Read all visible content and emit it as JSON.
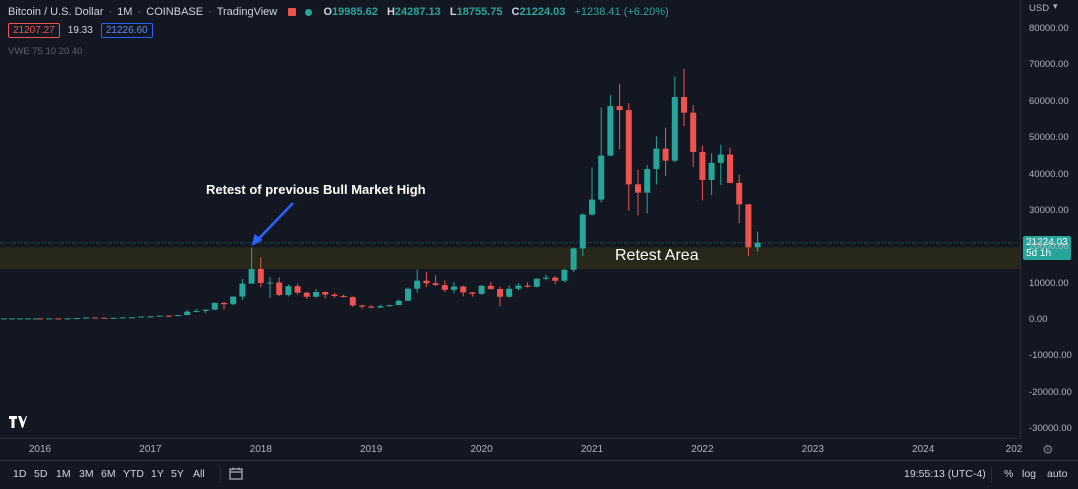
{
  "header": {
    "symbol": "Bitcoin / U.S. Dollar",
    "interval": "1M",
    "exchange": "COINBASE",
    "source": "TradingView",
    "open_label": "O",
    "open": "19985.62",
    "high_label": "H",
    "high": "24287.13",
    "low_label": "L",
    "low": "18755.75",
    "close_label": "C",
    "close": "21224.03",
    "change": "+1238.41 (+6.20%)",
    "sell_price": "21207.27",
    "spread": "19.33",
    "buy_price": "21226.60",
    "indicator": "VWE 75 10 20 40"
  },
  "currency": "USD",
  "y_axis_labels": [
    "80000.00",
    "70000.00",
    "60000.00",
    "50000.00",
    "40000.00",
    "30000.00",
    "20000.00",
    "10000.00",
    "0.00",
    "-10000.00",
    "-20000.00",
    "-30000.00"
  ],
  "last_price_tag": {
    "price": "21224.03",
    "countdown": "5d 1h"
  },
  "x_axis_labels": [
    "2016",
    "2017",
    "2018",
    "2019",
    "2020",
    "2021",
    "2022",
    "2023",
    "2024",
    "202"
  ],
  "annotations": {
    "retest_high": "Retest of previous Bull Market High",
    "retest_area": "Retest Area"
  },
  "bottom_bar": {
    "ranges": [
      "1D",
      "5D",
      "1M",
      "3M",
      "6M",
      "YTD",
      "1Y",
      "5Y",
      "All"
    ],
    "time": "19:55:13 (UTC-4)",
    "percent": "%",
    "log": "log",
    "auto": "auto"
  },
  "colors": {
    "up": "#26a69a",
    "down": "#ef5350",
    "background": "#131722",
    "zone": "#2b2a1a",
    "arrow": "#2962ff"
  },
  "chart_data": {
    "type": "candlestick",
    "title": "Bitcoin / U.S. Dollar · 1M · COINBASE",
    "xlabel": "",
    "ylabel": "USD",
    "ylim": [
      -30000,
      85000
    ],
    "grid": false,
    "zone": {
      "label": "Retest Area",
      "from": 14000,
      "to": 20000
    },
    "candles": [
      {
        "t": "2016-01",
        "o": 430,
        "h": 460,
        "l": 360,
        "c": 370
      },
      {
        "t": "2016-02",
        "o": 370,
        "h": 440,
        "l": 360,
        "c": 437
      },
      {
        "t": "2016-03",
        "o": 437,
        "h": 440,
        "l": 400,
        "c": 416
      },
      {
        "t": "2016-04",
        "o": 416,
        "h": 470,
        "l": 410,
        "c": 448
      },
      {
        "t": "2016-05",
        "o": 448,
        "h": 550,
        "l": 440,
        "c": 531
      },
      {
        "t": "2016-06",
        "o": 531,
        "h": 780,
        "l": 520,
        "c": 673
      },
      {
        "t": "2016-07",
        "o": 673,
        "h": 680,
        "l": 580,
        "c": 624
      },
      {
        "t": "2016-08",
        "o": 624,
        "h": 630,
        "l": 540,
        "c": 573
      },
      {
        "t": "2016-09",
        "o": 573,
        "h": 620,
        "l": 570,
        "c": 608
      },
      {
        "t": "2016-10",
        "o": 608,
        "h": 740,
        "l": 605,
        "c": 700
      },
      {
        "t": "2016-11",
        "o": 700,
        "h": 750,
        "l": 690,
        "c": 742
      },
      {
        "t": "2016-12",
        "o": 742,
        "h": 980,
        "l": 740,
        "c": 966
      },
      {
        "t": "2017-01",
        "o": 966,
        "h": 1150,
        "l": 750,
        "c": 970
      },
      {
        "t": "2017-02",
        "o": 970,
        "h": 1200,
        "l": 920,
        "c": 1190
      },
      {
        "t": "2017-03",
        "o": 1190,
        "h": 1300,
        "l": 900,
        "c": 1080
      },
      {
        "t": "2017-04",
        "o": 1080,
        "h": 1350,
        "l": 1070,
        "c": 1350
      },
      {
        "t": "2017-05",
        "o": 1350,
        "h": 2800,
        "l": 1340,
        "c": 2300
      },
      {
        "t": "2017-06",
        "o": 2300,
        "h": 3000,
        "l": 2100,
        "c": 2500
      },
      {
        "t": "2017-07",
        "o": 2500,
        "h": 2900,
        "l": 1800,
        "c": 2860
      },
      {
        "t": "2017-08",
        "o": 2860,
        "h": 4800,
        "l": 2700,
        "c": 4700
      },
      {
        "t": "2017-09",
        "o": 4700,
        "h": 5000,
        "l": 2900,
        "c": 4340
      },
      {
        "t": "2017-10",
        "o": 4340,
        "h": 6450,
        "l": 4100,
        "c": 6450
      },
      {
        "t": "2017-11",
        "o": 6450,
        "h": 11300,
        "l": 5500,
        "c": 10000
      },
      {
        "t": "2017-12",
        "o": 10000,
        "h": 19900,
        "l": 10000,
        "c": 14000
      },
      {
        "t": "2018-01",
        "o": 14000,
        "h": 17200,
        "l": 9000,
        "c": 10200
      },
      {
        "t": "2018-02",
        "o": 10200,
        "h": 11800,
        "l": 6000,
        "c": 10300
      },
      {
        "t": "2018-03",
        "o": 10300,
        "h": 11700,
        "l": 6600,
        "c": 6900
      },
      {
        "t": "2018-04",
        "o": 6900,
        "h": 9800,
        "l": 6500,
        "c": 9300
      },
      {
        "t": "2018-05",
        "o": 9300,
        "h": 10000,
        "l": 7000,
        "c": 7500
      },
      {
        "t": "2018-06",
        "o": 7500,
        "h": 7800,
        "l": 5800,
        "c": 6400
      },
      {
        "t": "2018-07",
        "o": 6400,
        "h": 8500,
        "l": 6100,
        "c": 7700
      },
      {
        "t": "2018-08",
        "o": 7700,
        "h": 7800,
        "l": 5900,
        "c": 7000
      },
      {
        "t": "2018-09",
        "o": 7000,
        "h": 7400,
        "l": 6100,
        "c": 6600
      },
      {
        "t": "2018-10",
        "o": 6600,
        "h": 7000,
        "l": 6200,
        "c": 6300
      },
      {
        "t": "2018-11",
        "o": 6300,
        "h": 6500,
        "l": 3600,
        "c": 4000
      },
      {
        "t": "2018-12",
        "o": 4000,
        "h": 4200,
        "l": 3100,
        "c": 3700
      },
      {
        "t": "2019-01",
        "o": 3700,
        "h": 4100,
        "l": 3350,
        "c": 3400
      },
      {
        "t": "2019-02",
        "o": 3400,
        "h": 4200,
        "l": 3350,
        "c": 3800
      },
      {
        "t": "2019-03",
        "o": 3800,
        "h": 4100,
        "l": 3700,
        "c": 4100
      },
      {
        "t": "2019-04",
        "o": 4100,
        "h": 5600,
        "l": 4050,
        "c": 5300
      },
      {
        "t": "2019-05",
        "o": 5300,
        "h": 9000,
        "l": 5200,
        "c": 8600
      },
      {
        "t": "2019-06",
        "o": 8600,
        "h": 13900,
        "l": 7500,
        "c": 10800
      },
      {
        "t": "2019-07",
        "o": 10800,
        "h": 13200,
        "l": 9100,
        "c": 10100
      },
      {
        "t": "2019-08",
        "o": 10100,
        "h": 12300,
        "l": 9400,
        "c": 9600
      },
      {
        "t": "2019-09",
        "o": 9600,
        "h": 10900,
        "l": 7700,
        "c": 8300
      },
      {
        "t": "2019-10",
        "o": 8300,
        "h": 10400,
        "l": 7300,
        "c": 9200
      },
      {
        "t": "2019-11",
        "o": 9200,
        "h": 9500,
        "l": 6500,
        "c": 7600
      },
      {
        "t": "2019-12",
        "o": 7600,
        "h": 7700,
        "l": 6400,
        "c": 7200
      },
      {
        "t": "2020-01",
        "o": 7200,
        "h": 9600,
        "l": 6900,
        "c": 9400
      },
      {
        "t": "2020-02",
        "o": 9400,
        "h": 10500,
        "l": 8400,
        "c": 8500
      },
      {
        "t": "2020-03",
        "o": 8500,
        "h": 9200,
        "l": 3800,
        "c": 6400
      },
      {
        "t": "2020-04",
        "o": 6400,
        "h": 9500,
        "l": 6150,
        "c": 8600
      },
      {
        "t": "2020-05",
        "o": 8600,
        "h": 10100,
        "l": 8100,
        "c": 9450
      },
      {
        "t": "2020-06",
        "o": 9450,
        "h": 10400,
        "l": 8900,
        "c": 9140
      },
      {
        "t": "2020-07",
        "o": 9140,
        "h": 11450,
        "l": 8950,
        "c": 11350
      },
      {
        "t": "2020-08",
        "o": 11350,
        "h": 12500,
        "l": 10950,
        "c": 11650
      },
      {
        "t": "2020-09",
        "o": 11650,
        "h": 12100,
        "l": 9900,
        "c": 10800
      },
      {
        "t": "2020-10",
        "o": 10800,
        "h": 14100,
        "l": 10400,
        "c": 13800
      },
      {
        "t": "2020-11",
        "o": 13800,
        "h": 19900,
        "l": 13200,
        "c": 19700
      },
      {
        "t": "2020-12",
        "o": 19700,
        "h": 29300,
        "l": 17600,
        "c": 29000
      },
      {
        "t": "2021-01",
        "o": 29000,
        "h": 41900,
        "l": 28700,
        "c": 33100
      },
      {
        "t": "2021-02",
        "o": 33100,
        "h": 58400,
        "l": 32300,
        "c": 45200
      },
      {
        "t": "2021-03",
        "o": 45200,
        "h": 61800,
        "l": 45000,
        "c": 58800
      },
      {
        "t": "2021-04",
        "o": 58800,
        "h": 64900,
        "l": 47000,
        "c": 57700
      },
      {
        "t": "2021-05",
        "o": 57700,
        "h": 59600,
        "l": 30000,
        "c": 37300
      },
      {
        "t": "2021-06",
        "o": 37300,
        "h": 41300,
        "l": 28800,
        "c": 35000
      },
      {
        "t": "2021-07",
        "o": 35000,
        "h": 42600,
        "l": 29300,
        "c": 41500
      },
      {
        "t": "2021-08",
        "o": 41500,
        "h": 50500,
        "l": 37300,
        "c": 47100
      },
      {
        "t": "2021-09",
        "o": 47100,
        "h": 52900,
        "l": 39600,
        "c": 43800
      },
      {
        "t": "2021-10",
        "o": 43800,
        "h": 67000,
        "l": 43300,
        "c": 61300
      },
      {
        "t": "2021-11",
        "o": 61300,
        "h": 69000,
        "l": 53300,
        "c": 57000
      },
      {
        "t": "2021-12",
        "o": 57000,
        "h": 59100,
        "l": 42000,
        "c": 46200
      },
      {
        "t": "2022-01",
        "o": 46200,
        "h": 47900,
        "l": 32900,
        "c": 38500
      },
      {
        "t": "2022-02",
        "o": 38500,
        "h": 45800,
        "l": 34300,
        "c": 43200
      },
      {
        "t": "2022-03",
        "o": 43200,
        "h": 48200,
        "l": 37100,
        "c": 45500
      },
      {
        "t": "2022-04",
        "o": 45500,
        "h": 47400,
        "l": 37600,
        "c": 37700
      },
      {
        "t": "2022-05",
        "o": 37700,
        "h": 40000,
        "l": 26700,
        "c": 31800
      },
      {
        "t": "2022-06",
        "o": 31800,
        "h": 31900,
        "l": 17600,
        "c": 19985.62
      },
      {
        "t": "2022-07",
        "o": 19985.62,
        "h": 24287.13,
        "l": 18755.75,
        "c": 21224.03
      }
    ]
  }
}
